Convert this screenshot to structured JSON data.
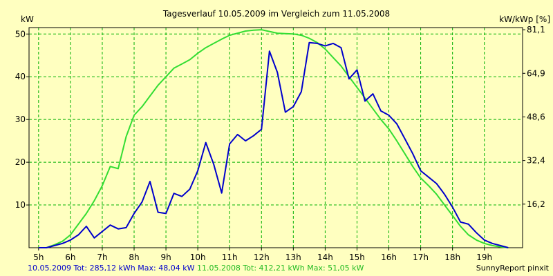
{
  "chart_data": {
    "type": "line",
    "title": "Tagesverlauf 10.05.2009 im Vergleich zum 11.05.2008",
    "ylabel_left": "kW",
    "ylabel_right": "kW/kWp [%]",
    "x_ticks": [
      "5h",
      "6h",
      "7h",
      "8h",
      "9h",
      "10h",
      "11h",
      "12h",
      "13h",
      "14h",
      "15h",
      "16h",
      "17h",
      "18h",
      "19h"
    ],
    "x_tick_values": [
      5,
      6,
      7,
      8,
      9,
      10,
      11,
      12,
      13,
      14,
      15,
      16,
      17,
      18,
      19
    ],
    "xlim": [
      4.7,
      20.2
    ],
    "ylim_left": [
      0,
      51.5
    ],
    "left_ticks": [
      10,
      20,
      30,
      40,
      50
    ],
    "right_ticks": [
      {
        "label": "16,2",
        "at": 10.2
      },
      {
        "label": "32,4",
        "at": 20.4
      },
      {
        "label": "48,6",
        "at": 30.6
      },
      {
        "label": "64,9",
        "at": 40.8
      },
      {
        "label": "81,1",
        "at": 51.0
      }
    ],
    "grid": true,
    "colors": {
      "series_2009": "#0000cc",
      "series_2008": "#33dd33",
      "grid": "#00b000",
      "background": "#ffffc0"
    },
    "series": [
      {
        "color": "#0000cc",
        "x": [
          5.0,
          5.25,
          5.5,
          5.75,
          6.0,
          6.25,
          6.5,
          6.75,
          7.0,
          7.25,
          7.5,
          7.75,
          8.0,
          8.25,
          8.5,
          8.75,
          9.0,
          9.25,
          9.5,
          9.75,
          10.0,
          10.25,
          10.5,
          10.75,
          11.0,
          11.25,
          11.5,
          11.75,
          12.0,
          12.25,
          12.5,
          12.75,
          13.0,
          13.25,
          13.5,
          13.75,
          14.0,
          14.25,
          14.5,
          14.75,
          15.0,
          15.25,
          15.5,
          15.75,
          16.0,
          16.25,
          16.5,
          16.75,
          17.0,
          17.25,
          17.5,
          17.75,
          18.0,
          18.25,
          18.5,
          18.75,
          19.0,
          19.25,
          19.5,
          19.75
        ],
        "values": [
          0,
          0,
          0.5,
          1.0,
          1.8,
          3.0,
          5.0,
          2.3,
          3.8,
          5.3,
          4.4,
          4.7,
          8.0,
          10.7,
          15.5,
          8.3,
          8.0,
          12.7,
          12.0,
          13.7,
          18.0,
          24.6,
          19.5,
          12.8,
          24.3,
          26.5,
          25.0,
          26.2,
          27.7,
          46.0,
          41.0,
          31.7,
          33.0,
          36.5,
          48.0,
          47.8,
          47.2,
          47.8,
          46.8,
          39.5,
          41.6,
          34.3,
          36.0,
          32.0,
          31.0,
          29.0,
          25.5,
          22.0,
          18.0,
          16.5,
          15.0,
          12.5,
          9.5,
          6.0,
          5.5,
          3.5,
          1.8,
          1.0,
          0.5,
          0
        ]
      },
      {
        "color": "#33dd33",
        "x": [
          5.0,
          5.25,
          5.5,
          5.75,
          6.0,
          6.25,
          6.5,
          6.75,
          7.0,
          7.25,
          7.5,
          7.75,
          8.0,
          8.25,
          8.5,
          8.75,
          9.0,
          9.25,
          9.5,
          9.75,
          10.0,
          10.25,
          10.5,
          10.75,
          11.0,
          11.25,
          11.5,
          11.75,
          12.0,
          12.25,
          12.5,
          12.75,
          13.0,
          13.25,
          13.5,
          13.75,
          14.0,
          14.25,
          14.5,
          14.75,
          15.0,
          15.25,
          15.5,
          15.75,
          16.0,
          16.25,
          16.5,
          16.75,
          17.0,
          17.25,
          17.5,
          17.75,
          18.0,
          18.25,
          18.5,
          18.75,
          19.0,
          19.25,
          19.5,
          19.75
        ],
        "values": [
          0,
          0,
          0.7,
          1.5,
          3.0,
          5.5,
          8.0,
          11.0,
          14.5,
          19.0,
          18.5,
          26.0,
          31.0,
          33.0,
          35.5,
          38.0,
          40.0,
          42.0,
          43.0,
          44.0,
          45.5,
          46.8,
          47.8,
          48.8,
          49.7,
          50.2,
          50.7,
          50.9,
          51.0,
          50.6,
          50.2,
          50.1,
          50.0,
          49.7,
          49.0,
          48.0,
          46.5,
          44.5,
          42.5,
          40.0,
          37.5,
          35.0,
          32.5,
          30.0,
          27.8,
          25.0,
          22.0,
          19.0,
          16.3,
          14.5,
          12.5,
          10.0,
          7.5,
          5.0,
          3.0,
          1.8,
          1.0,
          0.5,
          0.2,
          0
        ]
      }
    ]
  },
  "legend": {
    "entry_2009": "10.05.2009 Tot: 285,12 kWh Max: 48,04 kW",
    "entry_2008": "11.05.2008 Tot: 412,21 kWh Max: 51,05 kW"
  },
  "credit": "SunnyReport pinxit"
}
